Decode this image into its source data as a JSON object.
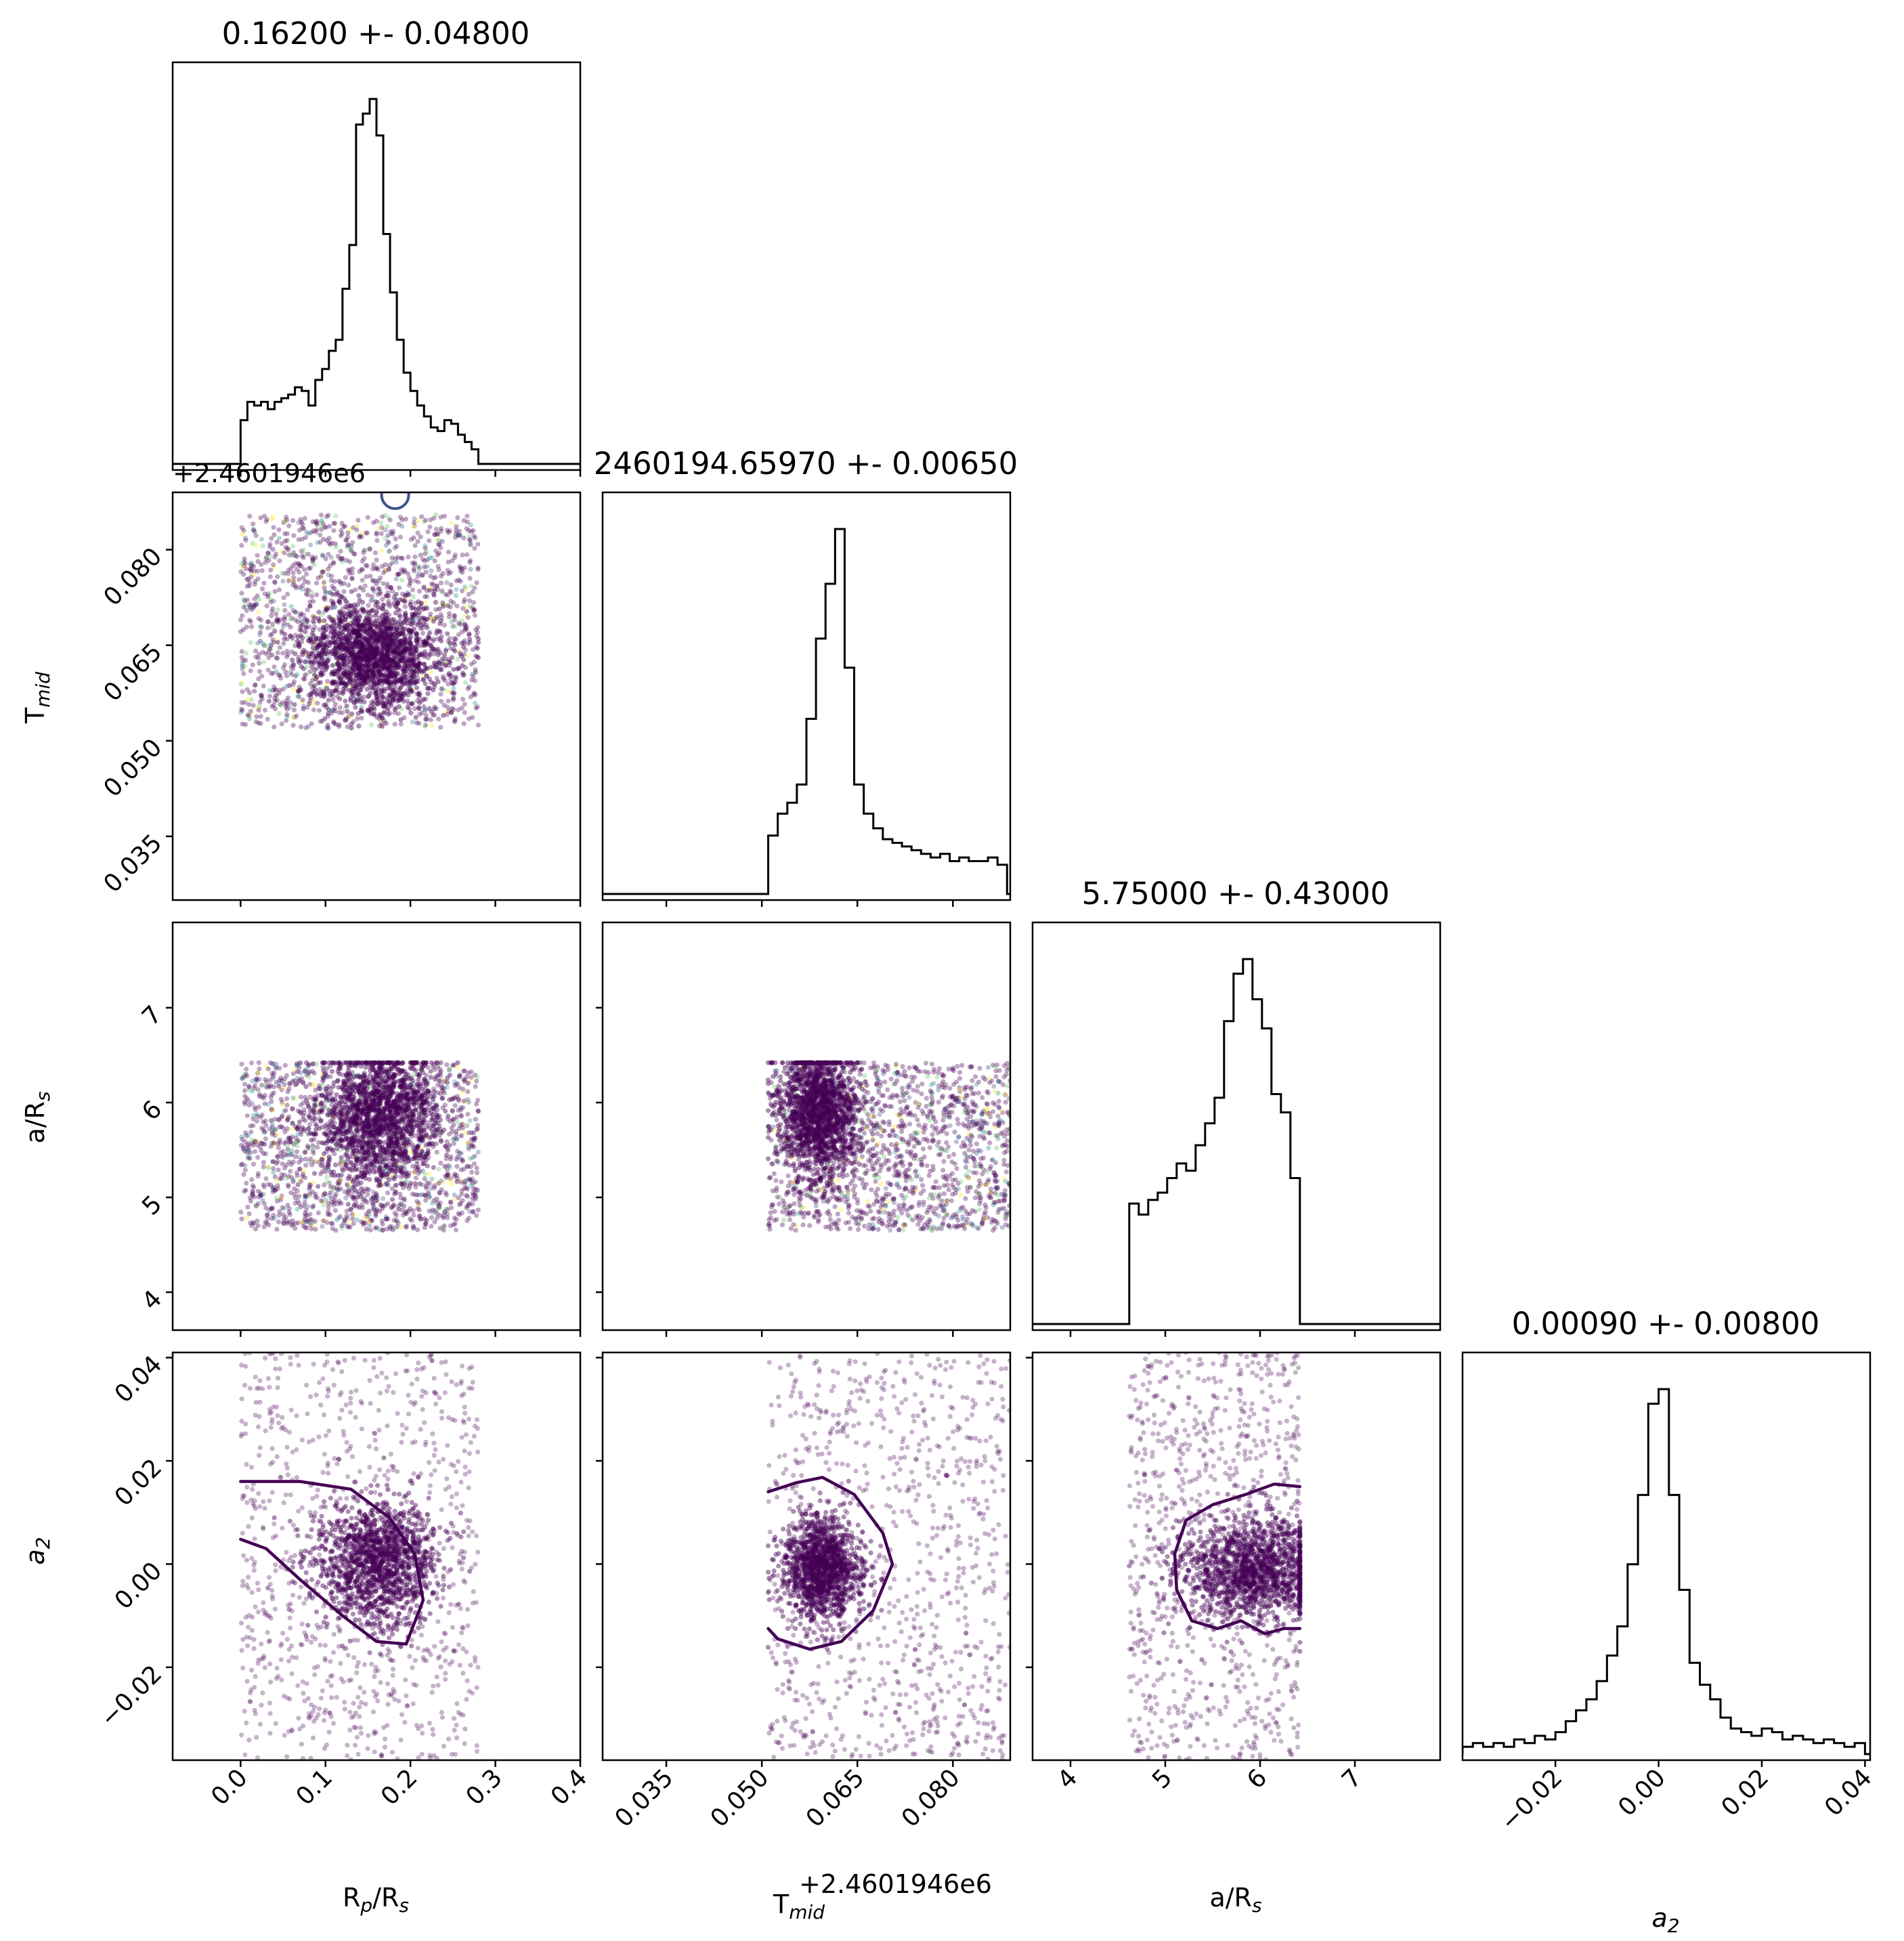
{
  "chart_data": {
    "type": "corner",
    "parameters": [
      "Rp/Rs",
      "Tmid",
      "a/Rs",
      "a2"
    ],
    "axis_labels": {
      "rp_rs": {
        "base": "R",
        "sub": "p",
        "mid": "/R",
        "sub2": "s"
      },
      "tmid": {
        "base": "T",
        "sub": "mid",
        "mid": "",
        "sub2": ""
      },
      "a_rs": {
        "base": "a/R",
        "sub": "s",
        "mid": "",
        "sub2": ""
      },
      "a2": {
        "base": "a",
        "sub": "2",
        "mid": "",
        "sub2": ""
      }
    },
    "titles": {
      "rp_rs": "0.16200 +- 0.04800",
      "tmid": "2460194.65970 +- 0.00650",
      "a_rs": "5.75000 +- 0.43000",
      "a2": "0.00090 +- 0.00800"
    },
    "offset_labels": {
      "tmid_x": "+2.4601946e6",
      "tmid_y": "+2.4601946e6"
    },
    "ranges": {
      "rp_rs": [
        -0.08,
        0.4
      ],
      "tmid": [
        0.025,
        0.089
      ],
      "a_rs": [
        3.6,
        7.9
      ],
      "a2": [
        -0.038,
        0.041
      ]
    },
    "ticks": {
      "rp_rs": [
        "0.0",
        "0.1",
        "0.2",
        "0.3",
        "0.4"
      ],
      "tmid": [
        "0.035",
        "0.050",
        "0.065",
        "0.080"
      ],
      "a_rs": [
        "4",
        "5",
        "6",
        "7"
      ],
      "a2": [
        "−0.02",
        "0.00",
        "0.02",
        "0.04"
      ]
    },
    "tick_values": {
      "rp_rs": [
        0.0,
        0.1,
        0.2,
        0.3,
        0.4
      ],
      "tmid": [
        0.035,
        0.05,
        0.065,
        0.08
      ],
      "a_rs": [
        4,
        5,
        6,
        7
      ],
      "a2": [
        -0.02,
        0.0,
        0.02,
        0.04
      ]
    },
    "histograms": {
      "rp_rs": {
        "edges": [
          0.0,
          0.008,
          0.016,
          0.024,
          0.032,
          0.04,
          0.048,
          0.056,
          0.064,
          0.072,
          0.08,
          0.088,
          0.096,
          0.104,
          0.112,
          0.12,
          0.128,
          0.136,
          0.144,
          0.152,
          0.16,
          0.168,
          0.176,
          0.184,
          0.192,
          0.2,
          0.208,
          0.216,
          0.224,
          0.232,
          0.24,
          0.248,
          0.256,
          0.264,
          0.272,
          0.28
        ],
        "counts": [
          0.12,
          0.17,
          0.16,
          0.17,
          0.15,
          0.17,
          0.18,
          0.19,
          0.21,
          0.2,
          0.16,
          0.23,
          0.26,
          0.31,
          0.34,
          0.48,
          0.6,
          0.93,
          0.96,
          1.0,
          0.9,
          0.63,
          0.47,
          0.34,
          0.25,
          0.2,
          0.16,
          0.13,
          0.1,
          0.09,
          0.12,
          0.11,
          0.08,
          0.06,
          0.04
        ]
      },
      "tmid": {
        "edges": [
          0.051,
          0.0525,
          0.054,
          0.0555,
          0.057,
          0.0585,
          0.06,
          0.0615,
          0.063,
          0.0645,
          0.066,
          0.0675,
          0.069,
          0.0705,
          0.072,
          0.0735,
          0.075,
          0.0765,
          0.078,
          0.0795,
          0.081,
          0.0825,
          0.084,
          0.0855,
          0.087,
          0.0885
        ],
        "counts": [
          0.16,
          0.22,
          0.25,
          0.3,
          0.48,
          0.7,
          0.85,
          1.0,
          0.62,
          0.3,
          0.22,
          0.18,
          0.15,
          0.14,
          0.13,
          0.12,
          0.11,
          0.1,
          0.11,
          0.09,
          0.1,
          0.09,
          0.09,
          0.1,
          0.08
        ],
        "left_zero": true
      },
      "a_rs": {
        "edges": [
          4.62,
          4.72,
          4.82,
          4.92,
          5.02,
          5.12,
          5.22,
          5.32,
          5.42,
          5.52,
          5.62,
          5.72,
          5.82,
          5.92,
          6.02,
          6.12,
          6.22,
          6.32,
          6.42
        ],
        "counts": [
          0.33,
          0.3,
          0.34,
          0.36,
          0.4,
          0.44,
          0.42,
          0.49,
          0.55,
          0.62,
          0.83,
          0.96,
          1.0,
          0.89,
          0.81,
          0.63,
          0.58,
          0.4
        ],
        "pad": 0.02
      },
      "a2": {
        "edges": [
          -0.038,
          -0.036,
          -0.034,
          -0.032,
          -0.03,
          -0.028,
          -0.026,
          -0.024,
          -0.022,
          -0.02,
          -0.018,
          -0.016,
          -0.014,
          -0.012,
          -0.01,
          -0.008,
          -0.006,
          -0.004,
          -0.002,
          0.0,
          0.002,
          0.004,
          0.006,
          0.008,
          0.01,
          0.012,
          0.014,
          0.016,
          0.018,
          0.02,
          0.022,
          0.024,
          0.026,
          0.028,
          0.03,
          0.032,
          0.034,
          0.036,
          0.038,
          0.04
        ],
        "counts": [
          0.02,
          0.03,
          0.02,
          0.03,
          0.02,
          0.04,
          0.03,
          0.05,
          0.04,
          0.06,
          0.09,
          0.12,
          0.15,
          0.2,
          0.27,
          0.35,
          0.52,
          0.71,
          0.96,
          1.0,
          0.71,
          0.45,
          0.25,
          0.19,
          0.15,
          0.1,
          0.07,
          0.06,
          0.05,
          0.07,
          0.06,
          0.04,
          0.05,
          0.04,
          0.03,
          0.04,
          0.03,
          0.02,
          0.03
        ]
      }
    },
    "scatter_panels": [
      {
        "x": "rp_rs",
        "y": "tmid",
        "core_center": [
          0.155,
          0.0635
        ],
        "core_sd": [
          0.04,
          0.004
        ],
        "box_x": [
          0.0,
          0.28
        ],
        "box_y": [
          0.052,
          0.0855
        ]
      },
      {
        "x": "rp_rs",
        "y": "a_rs",
        "core_center": [
          0.165,
          5.85
        ],
        "core_sd": [
          0.035,
          0.35
        ],
        "box_x": [
          0.0,
          0.28
        ],
        "box_y": [
          4.65,
          6.42
        ]
      },
      {
        "x": "tmid",
        "y": "a_rs",
        "core_center": [
          0.059,
          5.9
        ],
        "core_sd": [
          0.003,
          0.35
        ],
        "box_x": [
          0.051,
          0.089
        ],
        "box_y": [
          4.65,
          6.42
        ]
      },
      {
        "x": "rp_rs",
        "y": "a2",
        "core_center": [
          0.16,
          0.0
        ],
        "core_sd": [
          0.035,
          0.006
        ],
        "box_x": [
          0.0,
          0.28
        ],
        "box_y": [
          -0.038,
          0.041
        ]
      },
      {
        "x": "tmid",
        "y": "a2",
        "core_center": [
          0.0595,
          -0.001
        ],
        "core_sd": [
          0.003,
          0.005
        ],
        "box_x": [
          0.051,
          0.089
        ],
        "box_y": [
          -0.038,
          0.041
        ]
      },
      {
        "x": "a_rs",
        "y": "a2",
        "core_center": [
          5.95,
          -0.001
        ],
        "core_sd": [
          0.38,
          0.005
        ],
        "box_x": [
          4.62,
          6.42
        ],
        "box_y": [
          -0.038,
          0.041
        ]
      }
    ],
    "contours": {
      "rp_rs_a2": [
        [
          0.0,
          0.016
        ],
        [
          0.07,
          0.016
        ],
        [
          0.13,
          0.0145
        ],
        [
          0.175,
          0.009
        ],
        [
          0.205,
          0.002
        ],
        [
          0.215,
          -0.007
        ],
        [
          0.195,
          -0.0155
        ],
        [
          0.16,
          -0.015
        ],
        [
          0.12,
          -0.01
        ],
        [
          0.07,
          -0.003
        ],
        [
          0.03,
          0.003
        ],
        [
          0.0,
          0.0048
        ]
      ],
      "tmid_a2": [
        [
          0.051,
          0.014
        ],
        [
          0.0555,
          0.0158
        ],
        [
          0.0595,
          0.0168
        ],
        [
          0.0645,
          0.0135
        ],
        [
          0.069,
          0.006
        ],
        [
          0.0705,
          0.0
        ],
        [
          0.0675,
          -0.009
        ],
        [
          0.0625,
          -0.015
        ],
        [
          0.0575,
          -0.0165
        ],
        [
          0.0525,
          -0.0145
        ],
        [
          0.051,
          -0.0125
        ]
      ],
      "a_rs_a2": [
        [
          6.42,
          0.015
        ],
        [
          6.15,
          0.0155
        ],
        [
          5.85,
          0.0135
        ],
        [
          5.5,
          0.0115
        ],
        [
          5.22,
          0.0085
        ],
        [
          5.1,
          0.002
        ],
        [
          5.12,
          -0.005
        ],
        [
          5.28,
          -0.011
        ],
        [
          5.55,
          -0.0125
        ],
        [
          5.8,
          -0.011
        ],
        [
          6.05,
          -0.0135
        ],
        [
          6.25,
          -0.0125
        ],
        [
          6.42,
          -0.0125
        ]
      ]
    },
    "grid": false,
    "legend": "none",
    "colors": {
      "points": "#440154",
      "contour": "#440154",
      "line": "#000000",
      "extra_points": [
        "#3b528b",
        "#21918c",
        "#5ec962",
        "#fde725"
      ],
      "marker": "#3b528b"
    }
  }
}
